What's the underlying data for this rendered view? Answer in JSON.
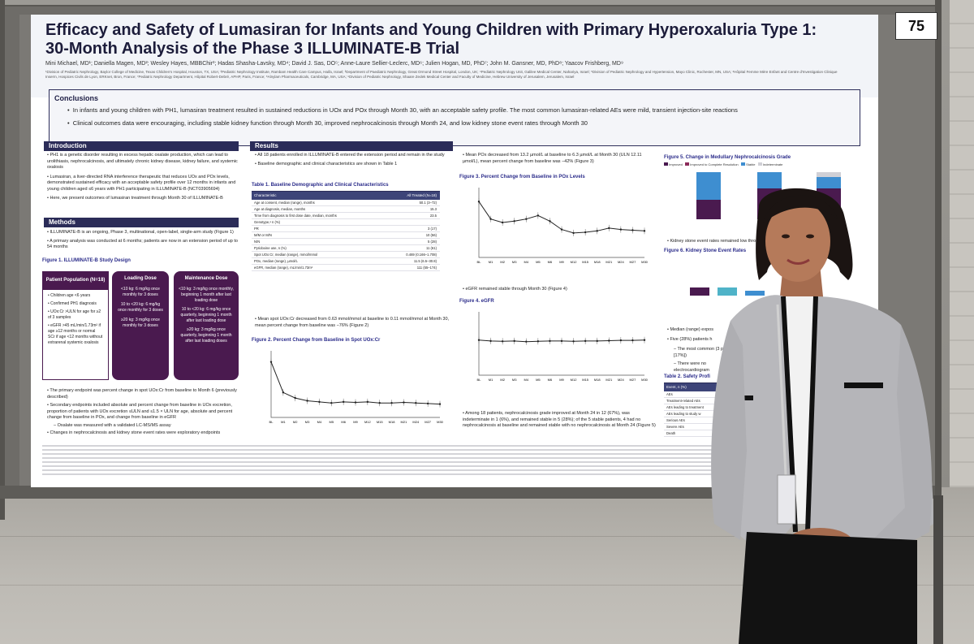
{
  "board": {
    "number": "75"
  },
  "poster": {
    "title_line1": "Efficacy and Safety of Lumasiran for Infants and Young Children with Primary Hyperoxaluria Type 1:",
    "title_line2": "30-Month Analysis of the Phase 3 ILLUMINATE-B Trial",
    "authors": "Mini Michael, MD¹; Daniella Magen, MD²; Wesley Hayes, MBBChir³; Hadas Shasha-Lavsky, MD⁴; David J. Sas, DO⁵; Anne-Laure Sellier-Leclerc, MD⁶; Julien Hogan, MD, PhD⁷; John M. Gansner, MD, PhD⁸; Yaacov Frishberg, MD⁹",
    "affiliations": "¹Division of Pediatric Nephrology, Baylor College of Medicine, Texas Children's Hospital, Houston, TX, USA; ²Pediatric Nephrology Institute, Rambam Health Care Campus, Haifa, Israel; ³Department of Paediatric Nephrology, Great Ormond Street Hospital, London, UK; ⁴Pediatric Nephrology Unit, Galilee Medical Center, Nahariya, Israel; ⁵Division of Pediatric Nephrology and Hypertension, Mayo Clinic, Rochester, MN, USA; ⁶Hôpital Femme Mère Enfant and Centre d'Investigation Clinique Inserm, Hospices Civils de Lyon, ERKnet, Bron, France; ⁷Pediatric Nephrology Department, Hôpital Robert-Debré, APHP, Paris, France; ⁸Alnylam Pharmaceuticals, Cambridge, MA, USA; ⁹Division of Pediatric Nephrology, Shaare Zedek Medical Center and Faculty of Medicine, Hebrew University of Jerusalem, Jerusalem, Israel",
    "conclusions": {
      "heading": "Conclusions",
      "points": [
        "In infants and young children with PH1, lumasiran treatment resulted in sustained reductions in UOx and POx through Month 30, with an acceptable safety profile. The most common lumasiran-related AEs were mild, transient injection-site reactions",
        "Clinical outcomes data were encouraging, including stable kidney function through Month 30, improved nephrocalcinosis through Month 24, and low kidney stone event rates through Month 30"
      ]
    },
    "introduction": {
      "heading": "Introduction",
      "points": [
        "PH1 is a genetic disorder resulting in excess hepatic oxalate production, which can lead to urolithiasis, nephrocalcinosis, and ultimately chronic kidney disease, kidney failure, and systemic oxalosis",
        "Lumasiran, a liver-directed RNA interference therapeutic that reduces UOx and POx levels, demonstrated sustained efficacy with an acceptable safety profile over 12 months in infants and young children aged ≤6 years with PH1 participating in ILLUMINATE-B (NCT03905694)",
        "Here, we present outcomes of lumasiran treatment through Month 30 of ILLUMINATE-B"
      ]
    },
    "methods": {
      "heading": "Methods",
      "points": [
        "ILLUMINATE-B is an ongoing, Phase 3, multinational, open-label, single-arm study (Figure 1)",
        "A primary analysis was conducted at 6 months; patients are now in an extension period of up to 54 months"
      ],
      "figure_title": "Figure 1. ILLUMINATE-B Study Design",
      "population_header": "Patient Population (N=18)",
      "population_items": [
        "Children age <6 years",
        "Confirmed PH1 diagnosis",
        "UOx:Cr >ULN for age for ≥2 of 3 samples",
        "eGFR >45 mL/min/1.73m² if age ≥12 months or normal SCr if age <12 months without extrarenal systemic oxalosis"
      ],
      "loading_header": "Loading Dose",
      "loading_items": [
        "<10 kg: 6 mg/kg once monthly for 3 doses",
        "10 to <20 kg: 6 mg/kg once monthly for 3 doses",
        "≥20 kg: 3 mg/kg once monthly for 3 doses"
      ],
      "maintenance_header": "Maintenance Dose",
      "maintenance_items": [
        "<10 kg: 3 mg/kg once monthly, beginning 1 month after last loading dose",
        "10 to <20 kg: 6 mg/kg once quarterly, beginning 1 month after last loading dose",
        "≥20 kg: 3 mg/kg once quarterly, beginning 1 month after last loading doses"
      ],
      "endpoints": [
        "The primary endpoint was percent change in spot UOx:Cr from baseline to Month 6 (previously described)",
        "Secondary endpoints included absolute and percent change from baseline in UOx excretion, proportion of patients with UOx excretion ≤ULN and ≤1.5 × ULN for age, absolute and percent change from baseline in POx, and change from baseline in eGFR",
        "– Oxalate was measured with a validated LC-MS/MS assay",
        "Changes in nephrocalcinosis and kidney stone event rates were exploratory endpoints"
      ]
    },
    "results": {
      "heading": "Results",
      "points": [
        "All 18 patients enrolled in ILLUMINATE-B entered the extension period and remain in the study",
        "Baseline demographic and clinical characteristics are shown in Table 1"
      ],
      "table1_title": "Table 1. Baseline Demographic and Clinical Characteristics",
      "table1_head": [
        "Characteristic",
        "All Treated (N=18)"
      ],
      "table1_rows": [
        [
          "Age at consent, median (range), months",
          "50.1 (3–72)"
        ],
        [
          "Age at diagnosis, median, months",
          "15.3"
        ],
        [
          "Time from diagnosis to first dose date, median, months",
          "23.5"
        ],
        [
          "Genotype,ᵃ n (%)",
          ""
        ],
        [
          "PR",
          "3 (17)"
        ],
        [
          "M/M or M/N",
          "10 (56)"
        ],
        [
          "N/N",
          "5 (28)"
        ],
        [
          "Pyridoxine use, n (%)",
          "11 (61)"
        ],
        [
          "Spot UOx:Cr, median (range), mmol/mmol",
          "0.469 (0.166–1.708)"
        ],
        [
          "POx, median (range), µmol/L",
          "11.5 (6.5–30.8)"
        ],
        [
          "eGFR, median (range), mL/min/1.73m²",
          "111 (55–174)"
        ]
      ],
      "uox_text": "Mean spot UOx:Cr decreased from 0.63 mmol/mmol at baseline to 0.11 mmol/mmol at Month 30, mean percent change from baseline was −76% (Figure 2)",
      "fig2_title": "Figure 2. Percent Change from Baseline in Spot UOx:Cr",
      "pox_text": "Mean POx decreased from 13.2 µmol/L at baseline to 6.3 µmol/L at Month 30 (ULN 12.11 µmol/L), mean percent change from baseline was −42% (Figure 3)",
      "fig3_title": "Figure 3. Percent Change from Baseline in POx Levels",
      "egfr_text": "eGFR remained stable through Month 30 (Figure 4)",
      "fig4_title": "Figure 4. eGFR",
      "nc_text": "Among 18 patients, nephrocalcinosis grade improved at Month 24 in 12 (67%), was indeterminate in 1 (6%), and remained stable in 5 (28%); of the 5 stable patients, 4 had no nephrocalcinosis at baseline and remained stable with no nephrocalcinosis at Month 24 (Figure 5)",
      "fig5_title": "Figure 5. Change in Medullary Nephrocalcinosis Grade",
      "fig5_legend": [
        "Improved",
        "Improved to Complete Resolution",
        "Stable",
        "Indeterminate"
      ],
      "fig6_title": "Figure 6. Kidney Stone Event Rates",
      "kidney_stone_text": "Kidney stone event rates remained low thro",
      "median_text": "Median (range) expos",
      "five_text": "Five (28%) patients h",
      "common_text": "The most common (3 patients [17%])",
      "no_text": "There were no electrocardiogram",
      "table2_title": "Table 2. Safety Profi",
      "table2_rows": [
        "Event, n (%)",
        "AEs",
        "Treatment-related AEs",
        "AEs leading to treatment",
        "AEs leading to study w",
        "Serious AEs",
        "Severe AEs",
        "Death"
      ]
    }
  },
  "colors": {
    "navy": "#2b2c58",
    "plum": "#4a1a4f",
    "bar_blue": "#3e8ed0",
    "bar_dark": "#4a1a4f",
    "bar_teal": "#4fb3c8"
  },
  "chart_data": [
    {
      "type": "line",
      "title": "Figure 2. Percent Change from Baseline in Spot UOx:Cr",
      "x": [
        "BL",
        "M1",
        "M2",
        "M3",
        "M4",
        "M5",
        "M6",
        "M9",
        "M12",
        "M15",
        "M18",
        "M21",
        "M24",
        "M27",
        "M30"
      ],
      "values": [
        0,
        -55,
        -65,
        -70,
        -72,
        -74,
        -72,
        -73,
        -72,
        -74,
        -74,
        -73,
        -74,
        -75,
        -76
      ],
      "ylim": [
        -100,
        20
      ]
    },
    {
      "type": "line",
      "title": "Figure 3. Percent Change from Baseline in POx Levels",
      "x": [
        "BL",
        "M1",
        "M2",
        "M3",
        "M4",
        "M5",
        "M6",
        "M9",
        "M12",
        "M15",
        "M18",
        "M21",
        "M24",
        "M27",
        "M30"
      ],
      "values": [
        0,
        -25,
        -30,
        -28,
        -25,
        -20,
        -28,
        -40,
        -45,
        -44,
        -42,
        -38,
        -40,
        -41,
        -42
      ],
      "ylim": [
        -80,
        20
      ]
    },
    {
      "type": "line",
      "title": "Figure 4. eGFR",
      "x": [
        "BL",
        "M1",
        "M2",
        "M3",
        "M4",
        "M5",
        "M6",
        "M9",
        "M12",
        "M15",
        "M18",
        "M21",
        "M24",
        "M27",
        "M30"
      ],
      "values": [
        111,
        108,
        107,
        108,
        106,
        107,
        108,
        108,
        107,
        108,
        108,
        109,
        110,
        110,
        111
      ],
      "ylim": [
        0,
        200
      ]
    }
  ]
}
